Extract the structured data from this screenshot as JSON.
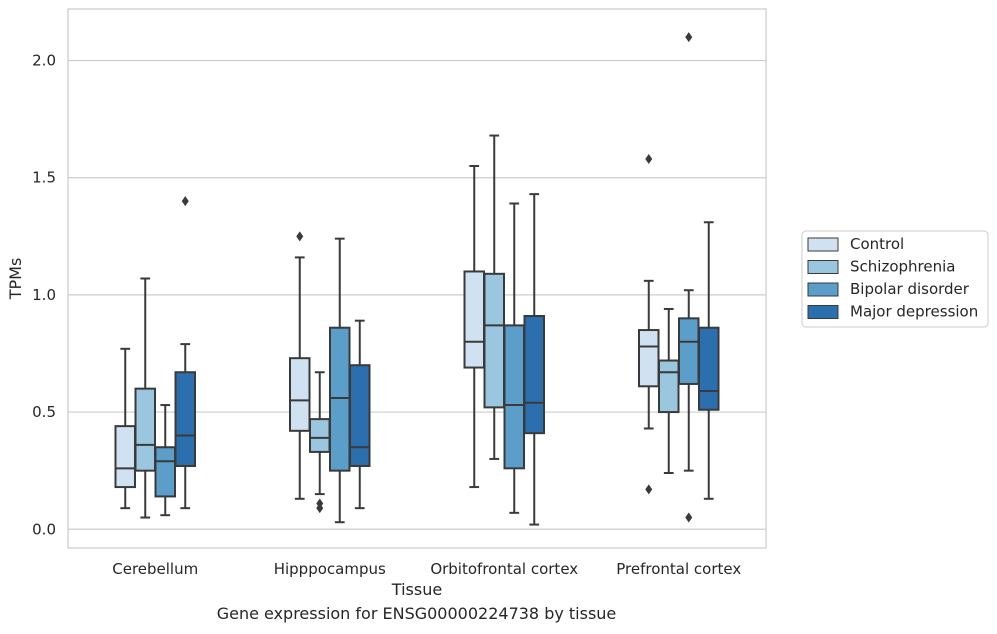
{
  "caption": "Gene expression for ENSG00000224738 by tissue",
  "chart_data": {
    "type": "boxplot",
    "xlabel": "Tissue",
    "ylabel": "TPMs",
    "ylim": [
      -0.08,
      2.22
    ],
    "yticks": [
      0.0,
      0.5,
      1.0,
      1.5,
      2.0
    ],
    "ytick_labels": [
      "0.0",
      "0.5",
      "1.0",
      "1.5",
      "2.0"
    ],
    "grid": "horizontal",
    "legend_position": "right",
    "categories": [
      "Cerebellum",
      "Hipppocampus",
      "Orbitofrontal cortex",
      "Prefrontal cortex"
    ],
    "series": [
      {
        "name": "Control",
        "color": "#d0e2f2",
        "boxes": [
          {
            "whislo": 0.09,
            "q1": 0.18,
            "med": 0.26,
            "q3": 0.44,
            "whishi": 0.77,
            "fliers": []
          },
          {
            "whislo": 0.13,
            "q1": 0.42,
            "med": 0.55,
            "q3": 0.73,
            "whishi": 1.16,
            "fliers": [
              1.25
            ]
          },
          {
            "whislo": 0.18,
            "q1": 0.69,
            "med": 0.8,
            "q3": 1.1,
            "whishi": 1.55,
            "fliers": []
          },
          {
            "whislo": 0.43,
            "q1": 0.61,
            "med": 0.78,
            "q3": 0.85,
            "whishi": 1.06,
            "fliers": [
              0.17,
              1.58
            ]
          }
        ]
      },
      {
        "name": "Schizophrenia",
        "color": "#9ac6df",
        "boxes": [
          {
            "whislo": 0.05,
            "q1": 0.25,
            "med": 0.36,
            "q3": 0.6,
            "whishi": 1.07,
            "fliers": []
          },
          {
            "whislo": 0.15,
            "q1": 0.33,
            "med": 0.39,
            "q3": 0.47,
            "whishi": 0.67,
            "fliers": [
              0.09,
              0.11
            ]
          },
          {
            "whislo": 0.3,
            "q1": 0.52,
            "med": 0.87,
            "q3": 1.09,
            "whishi": 1.68,
            "fliers": []
          },
          {
            "whislo": 0.24,
            "q1": 0.5,
            "med": 0.67,
            "q3": 0.72,
            "whishi": 0.94,
            "fliers": []
          }
        ]
      },
      {
        "name": "Bipolar disorder",
        "color": "#5a9ec9",
        "boxes": [
          {
            "whislo": 0.06,
            "q1": 0.14,
            "med": 0.29,
            "q3": 0.35,
            "whishi": 0.53,
            "fliers": []
          },
          {
            "whislo": 0.03,
            "q1": 0.25,
            "med": 0.56,
            "q3": 0.86,
            "whishi": 1.24,
            "fliers": []
          },
          {
            "whislo": 0.07,
            "q1": 0.26,
            "med": 0.53,
            "q3": 0.87,
            "whishi": 1.39,
            "fliers": []
          },
          {
            "whislo": 0.25,
            "q1": 0.62,
            "med": 0.8,
            "q3": 0.9,
            "whishi": 1.02,
            "fliers": [
              0.05,
              2.1
            ]
          }
        ]
      },
      {
        "name": "Major depression",
        "color": "#2c6fae",
        "boxes": [
          {
            "whislo": 0.09,
            "q1": 0.27,
            "med": 0.4,
            "q3": 0.67,
            "whishi": 0.79,
            "fliers": [
              1.4
            ]
          },
          {
            "whislo": 0.09,
            "q1": 0.27,
            "med": 0.35,
            "q3": 0.7,
            "whishi": 0.89,
            "fliers": []
          },
          {
            "whislo": 0.02,
            "q1": 0.41,
            "med": 0.54,
            "q3": 0.91,
            "whishi": 1.43,
            "fliers": []
          },
          {
            "whislo": 0.13,
            "q1": 0.51,
            "med": 0.59,
            "q3": 0.86,
            "whishi": 1.31,
            "fliers": []
          }
        ]
      }
    ]
  }
}
